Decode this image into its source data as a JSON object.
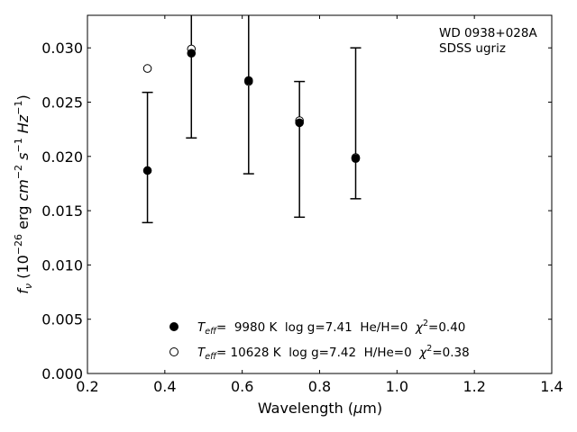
{
  "chart_data": {
    "type": "scatter",
    "title": "",
    "annotation_lines": [
      "WD 0938+028A",
      "SDSS ugriz"
    ],
    "xlabel": "Wavelength (μm)",
    "ylabel": "f_ν (10^-26 erg cm^-2 s^-1 Hz^-1)",
    "xlim": [
      0.2,
      1.4
    ],
    "ylim": [
      0.0,
      0.033
    ],
    "x_ticks": [
      "0.2",
      "0.4",
      "0.6",
      "0.8",
      "1.0",
      "1.2",
      "1.4"
    ],
    "y_ticks": [
      "0.000",
      "0.005",
      "0.010",
      "0.015",
      "0.020",
      "0.025",
      "0.030"
    ],
    "grid": false,
    "legend_position": "lower center",
    "observed": {
      "marker": "filled-circle",
      "x": [
        0.3551,
        0.4686,
        0.6166,
        0.748,
        0.8932
      ],
      "y": [
        0.0187,
        0.0295,
        0.0269,
        0.0232,
        0.0199
      ],
      "yerr_low": [
        0.0139,
        0.0217,
        0.0184,
        0.0144,
        0.0161
      ],
      "yerr_high": [
        0.0259,
        0.034,
        0.034,
        0.0269,
        0.03
      ]
    },
    "series": [
      {
        "name": "T_eff = 9980 K log g=7.41 He/H=0 χ²=0.40",
        "legend_parts": {
          "teff": "=  9980 K  log g=7.41  He/H=0  ",
          "chi": "=0.40"
        },
        "marker": "filled-circle",
        "x": [
          0.3551,
          0.4686,
          0.6166,
          0.748,
          0.8932
        ],
        "y": [
          0.0187,
          0.0295,
          0.027,
          0.0231,
          0.0198
        ]
      },
      {
        "name": "T_eff = 10628 K log g=7.42 H/He=0 χ²=0.38",
        "legend_parts": {
          "teff": "= 10628 K  log g=7.42  H/He=0  ",
          "chi": "=0.38"
        },
        "marker": "open-circle",
        "x": [
          0.3551,
          0.4686,
          0.6166,
          0.748,
          0.8932
        ],
        "y": [
          0.0281,
          0.0299,
          0.0269,
          0.0233,
          0.0199
        ]
      }
    ]
  }
}
